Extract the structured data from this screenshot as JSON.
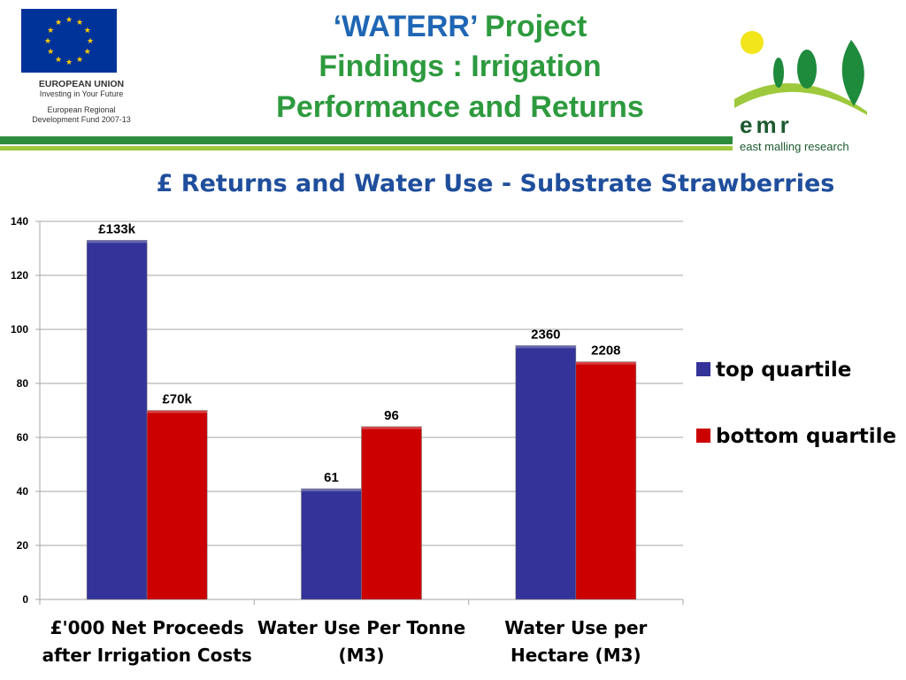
{
  "header": {
    "title_line1_quote": "‘WATERR’",
    "title_line1_rest": "Project",
    "title_line2": "Findings : Irrigation",
    "title_line3": "Performance and Returns"
  },
  "eu_logo": {
    "line1": "EUROPEAN UNION",
    "line2": "Investing in Your Future",
    "line3": "European Regional",
    "line4": "Development Fund 2007-13",
    "colors": {
      "flag": "#003399",
      "stars": "#ffcc00"
    }
  },
  "emr_logo": {
    "letters": "emr",
    "subtitle": "east malling research",
    "colors": {
      "sun": "#f2e51a",
      "leaf": "#1e8a3c",
      "swoosh": "#9ec93d"
    }
  },
  "colors": {
    "band_dark": "#2e8b3e",
    "band_light": "#9ec93d",
    "top_quartile": "#333399",
    "bottom_quartile": "#cc0000",
    "subtitle": "#1f4e9c"
  },
  "chart_data": {
    "type": "bar",
    "title": "£ Returns and Water Use - Substrate Strawberries",
    "categories": [
      [
        "£'000 Net Proceeds",
        "after Irrigation Costs"
      ],
      [
        "Water Use Per Tonne",
        "(M3)"
      ],
      [
        "Water Use per",
        "Hectare (M3)"
      ]
    ],
    "series": [
      {
        "name": "top quartile",
        "values": [
          133,
          41,
          94
        ],
        "labels": [
          "£133k",
          "61",
          "2360"
        ]
      },
      {
        "name": "bottom quartile",
        "values": [
          70,
          64,
          88
        ],
        "labels": [
          "£70k",
          "96",
          "2208"
        ]
      }
    ],
    "ylim": [
      0,
      140
    ],
    "yticks": [
      0,
      20,
      40,
      60,
      80,
      100,
      120,
      140
    ],
    "grid": true,
    "legend_position": "right"
  }
}
